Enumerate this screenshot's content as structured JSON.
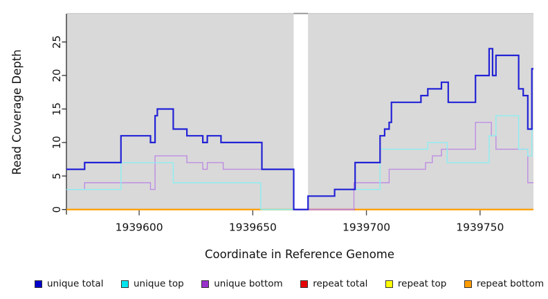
{
  "chart_data": {
    "type": "line",
    "subtype": "step-coverage",
    "title": "",
    "xlabel": "Coordinate in Reference Genome",
    "ylabel": "Read Coverage Depth",
    "xlim": [
      1939568,
      1939773.5
    ],
    "ylim": [
      0,
      29.2
    ],
    "x_ticks": [
      1939600,
      1939650,
      1939700,
      1939750
    ],
    "y_ticks": [
      0,
      5,
      10,
      15,
      20,
      25
    ],
    "grid": false,
    "plot_bg": "#d9d9d9",
    "mask_region": {
      "from": 1939668,
      "to": 1939674.3,
      "color": "#ffffff",
      "top_line_color": "#8e8e8e"
    },
    "top_edge_color": "#c9c9c9",
    "legend_position": "bottom",
    "series": [
      {
        "name": "unique total",
        "color": "#2222d6",
        "width": 2.2,
        "steps": [
          [
            1939568,
            6
          ],
          [
            1939576,
            7
          ],
          [
            1939592,
            11
          ],
          [
            1939605,
            10
          ],
          [
            1939607,
            14
          ],
          [
            1939608,
            15
          ],
          [
            1939615,
            12
          ],
          [
            1939621,
            11
          ],
          [
            1939628,
            10
          ],
          [
            1939630,
            11
          ],
          [
            1939636,
            10
          ],
          [
            1939654,
            6
          ],
          [
            1939668,
            0
          ],
          [
            1939674.3,
            2
          ],
          [
            1939686,
            3
          ],
          [
            1939695,
            7
          ],
          [
            1939706,
            11
          ],
          [
            1939708,
            12
          ],
          [
            1939710,
            13
          ],
          [
            1939711,
            16
          ],
          [
            1939724,
            17
          ],
          [
            1939727,
            18
          ],
          [
            1939733,
            19
          ],
          [
            1939736,
            16
          ],
          [
            1939748,
            20
          ],
          [
            1939754,
            24
          ],
          [
            1939755.5,
            20
          ],
          [
            1939757,
            23
          ],
          [
            1939767,
            18
          ],
          [
            1939769,
            17
          ],
          [
            1939771,
            12
          ],
          [
            1939772.8,
            21
          ]
        ]
      },
      {
        "name": "unique top",
        "color": "#8ceef2",
        "width": 1.4,
        "steps": [
          [
            1939568,
            3
          ],
          [
            1939592,
            7
          ],
          [
            1939615,
            4
          ],
          [
            1939653.5,
            0
          ],
          [
            1939674.3,
            2
          ],
          [
            1939686,
            3
          ],
          [
            1939706,
            9
          ],
          [
            1939727,
            10
          ],
          [
            1939735.5,
            7
          ],
          [
            1939754,
            11
          ],
          [
            1939757,
            14
          ],
          [
            1939767,
            9
          ],
          [
            1939771,
            8
          ],
          [
            1939772.8,
            12
          ]
        ]
      },
      {
        "name": "unique bottom",
        "color": "#bd8ce2",
        "width": 1.4,
        "steps": [
          [
            1939568,
            3
          ],
          [
            1939576,
            4
          ],
          [
            1939605,
            3
          ],
          [
            1939607,
            8
          ],
          [
            1939621,
            7
          ],
          [
            1939628,
            6
          ],
          [
            1939630,
            7
          ],
          [
            1939637,
            6
          ],
          [
            1939668,
            0
          ],
          [
            1939694.5,
            4
          ],
          [
            1939710,
            6
          ],
          [
            1939726,
            7
          ],
          [
            1939729,
            8
          ],
          [
            1939733,
            9
          ],
          [
            1939748,
            13
          ],
          [
            1939755,
            11
          ],
          [
            1939757,
            9
          ],
          [
            1939771,
            4
          ]
        ]
      },
      {
        "name": "repeat total",
        "color": "#e60000",
        "width": 1.4,
        "steps": [
          [
            1939568,
            0
          ]
        ]
      },
      {
        "name": "repeat top",
        "color": "#ffff00",
        "width": 1.4,
        "steps": [
          [
            1939568,
            0
          ]
        ]
      },
      {
        "name": "repeat bottom",
        "color": "#ff9d00",
        "width": 2,
        "steps": [
          [
            1939568,
            0
          ]
        ]
      }
    ],
    "baseline_overlay": [
      {
        "color": "#ff9d00",
        "from": 1939568,
        "to": 1939654
      },
      {
        "color": "#9fd3a0",
        "from": 1939654,
        "to": 1939668
      },
      {
        "color": "#3a3ae0",
        "from": 1939668,
        "to": 1939674.3
      },
      {
        "color": "#c64470",
        "from": 1939674.3,
        "to": 1939695
      },
      {
        "color": "#ff9d00",
        "from": 1939695,
        "to": 1939773.5
      }
    ],
    "legend": [
      {
        "label": "unique total",
        "color": "#0000cd"
      },
      {
        "label": "unique top",
        "color": "#00e5ee"
      },
      {
        "label": "unique bottom",
        "color": "#9932cc"
      },
      {
        "label": "repeat total",
        "color": "#e60000"
      },
      {
        "label": "repeat top",
        "color": "#ffff00"
      },
      {
        "label": "repeat bottom",
        "color": "#ff9d00"
      }
    ]
  }
}
